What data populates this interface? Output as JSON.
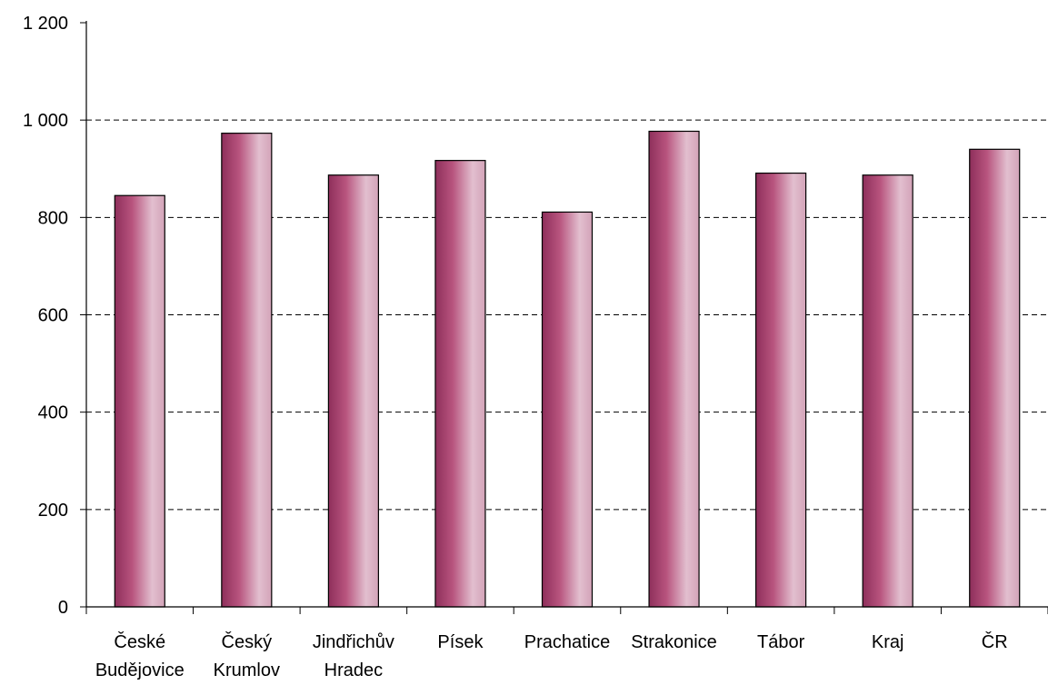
{
  "chart_data": {
    "type": "bar",
    "categories": [
      [
        "České",
        "Budějovice"
      ],
      [
        "Český",
        "Krumlov"
      ],
      [
        "Jindřichův",
        "Hradec"
      ],
      [
        "Písek"
      ],
      [
        "Prachatice"
      ],
      [
        "Strakonice"
      ],
      [
        "Tábor"
      ],
      [
        "Kraj"
      ],
      [
        "ČR"
      ]
    ],
    "values": [
      845,
      973,
      887,
      917,
      811,
      977,
      891,
      887,
      940
    ],
    "ylim": [
      0,
      1200
    ],
    "yticks": [
      0,
      200,
      400,
      600,
      800,
      1000,
      1200
    ],
    "ytick_labels": [
      "0",
      "200",
      "400",
      "600",
      "800",
      "1 000",
      "1 200"
    ],
    "grid": "horizontal-dashed",
    "bar_gradient": [
      "#8e2f5b",
      "#b8547e",
      "#e2bfcf",
      "#d3a3b8"
    ]
  }
}
